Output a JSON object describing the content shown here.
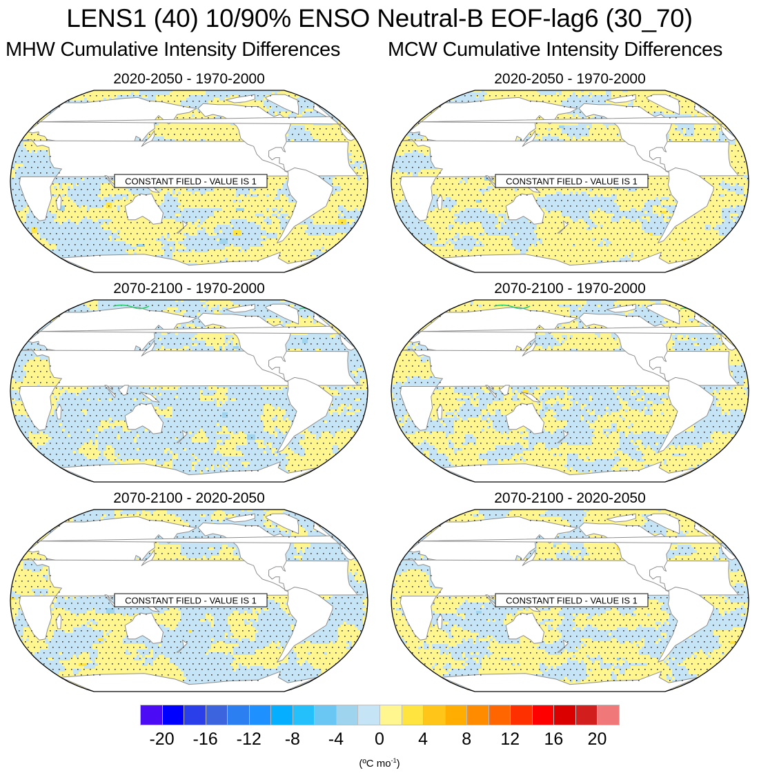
{
  "title": "LENS1 (40) 10/90% ENSO Neutral-B EOF-lag6 (30_70)",
  "column_titles": {
    "left": "MHW Cumulative Intensity Differences",
    "right": "MCW Cumulative Intensity Differences"
  },
  "colors": {
    "land": "#ffffff",
    "coastline": "#8c8c8c",
    "outline": "#000000",
    "stipple": "#333333",
    "sea_ice_contour": "#2ecc71"
  },
  "chart_data": {
    "type": "heatmap",
    "projection": "Robinson, Pacific-centered",
    "panels": [
      {
        "id": "mhw-2020-2050-minus-1970-2000",
        "column": "MHW",
        "title": "2020-2050 - 1970-2000",
        "annotation": "CONSTANT FIELD - VALUE IS 1",
        "dominant_range": [
          -2,
          2
        ],
        "positive_fraction": 0.5,
        "has_green": false
      },
      {
        "id": "mcw-2020-2050-minus-1970-2000",
        "column": "MCW",
        "title": "2020-2050 - 1970-2000",
        "annotation": "CONSTANT FIELD - VALUE IS 1",
        "dominant_range": [
          -2,
          4
        ],
        "positive_fraction": 0.55,
        "has_green": false
      },
      {
        "id": "mhw-2070-2100-minus-1970-2000",
        "column": "MHW",
        "title": "2070-2100 - 1970-2000",
        "annotation": "",
        "dominant_range": [
          -4,
          2
        ],
        "positive_fraction": 0.42,
        "has_green": true
      },
      {
        "id": "mcw-2070-2100-minus-1970-2000",
        "column": "MCW",
        "title": "2070-2100 - 1970-2000",
        "annotation": "",
        "dominant_range": [
          -2,
          6
        ],
        "positive_fraction": 0.55,
        "has_green": true
      },
      {
        "id": "mhw-2070-2100-minus-2020-2050",
        "column": "MHW",
        "title": "2070-2100 - 2020-2050",
        "annotation": "CONSTANT FIELD - VALUE IS 1",
        "dominant_range": [
          -2,
          2
        ],
        "positive_fraction": 0.48,
        "has_green": false
      },
      {
        "id": "mcw-2070-2100-minus-2020-2050",
        "column": "MCW",
        "title": "2070-2100 - 2020-2050",
        "annotation": "CONSTANT FIELD - VALUE IS 1",
        "dominant_range": [
          -2,
          4
        ],
        "positive_fraction": 0.52,
        "has_green": false
      }
    ],
    "stippling": "significance dots over most ocean points",
    "colorbar": {
      "levels": [
        -22,
        -20,
        -18,
        -16,
        -14,
        -12,
        -10,
        -8,
        -6,
        -4,
        -2,
        0,
        2,
        4,
        6,
        8,
        10,
        12,
        14,
        16,
        18,
        20,
        22
      ],
      "colors": [
        "#4b0cf5",
        "#0000ff",
        "#2a3fea",
        "#3c64df",
        "#2c7ff0",
        "#1e90ff",
        "#06aeff",
        "#24c0fb",
        "#6ac6f2",
        "#9fd4ef",
        "#c5e5f6",
        "#fff68f",
        "#ffe33f",
        "#ffc518",
        "#ffad00",
        "#ff8c00",
        "#ff6600",
        "#ff3000",
        "#ff0000",
        "#db0000",
        "#d31e1e",
        "#f07878"
      ],
      "tick_labels": [
        "-20",
        "-16",
        "-12",
        "-8",
        "-4",
        "0",
        "4",
        "8",
        "12",
        "16",
        "20"
      ],
      "units": "(ºC mo",
      "units_exp": "-1",
      "units_close": ")"
    }
  }
}
